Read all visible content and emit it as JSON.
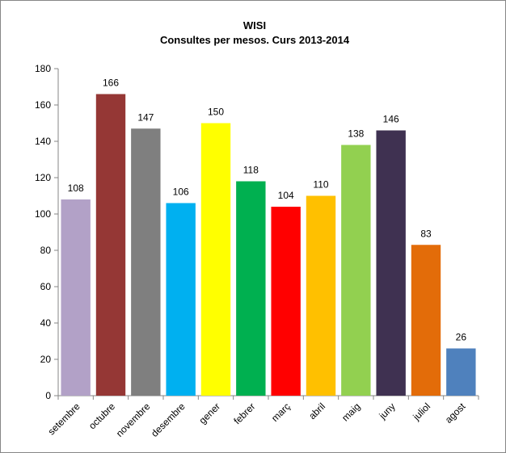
{
  "chart_data": {
    "type": "bar",
    "title": "WISI",
    "subtitle": "Consultes per mesos. Curs 2013-2014",
    "xlabel": "",
    "ylabel": "",
    "ylim": [
      0,
      180
    ],
    "y_ticks": [
      0,
      20,
      40,
      60,
      80,
      100,
      120,
      140,
      160,
      180
    ],
    "grid": false,
    "legend": "none",
    "categories": [
      "setembre",
      "octubre",
      "novembre",
      "desembre",
      "gener",
      "febrer",
      "març",
      "abril",
      "maig",
      "juny",
      "juliol",
      "agost"
    ],
    "values": [
      108,
      166,
      147,
      106,
      150,
      118,
      104,
      110,
      138,
      146,
      83,
      26
    ],
    "colors": [
      "#B2A1C7",
      "#953735",
      "#7F7F7F",
      "#00B0F0",
      "#FFFF00",
      "#00B050",
      "#FF0000",
      "#FFC000",
      "#92D050",
      "#3F3151",
      "#E36C09",
      "#4F81BD"
    ]
  }
}
